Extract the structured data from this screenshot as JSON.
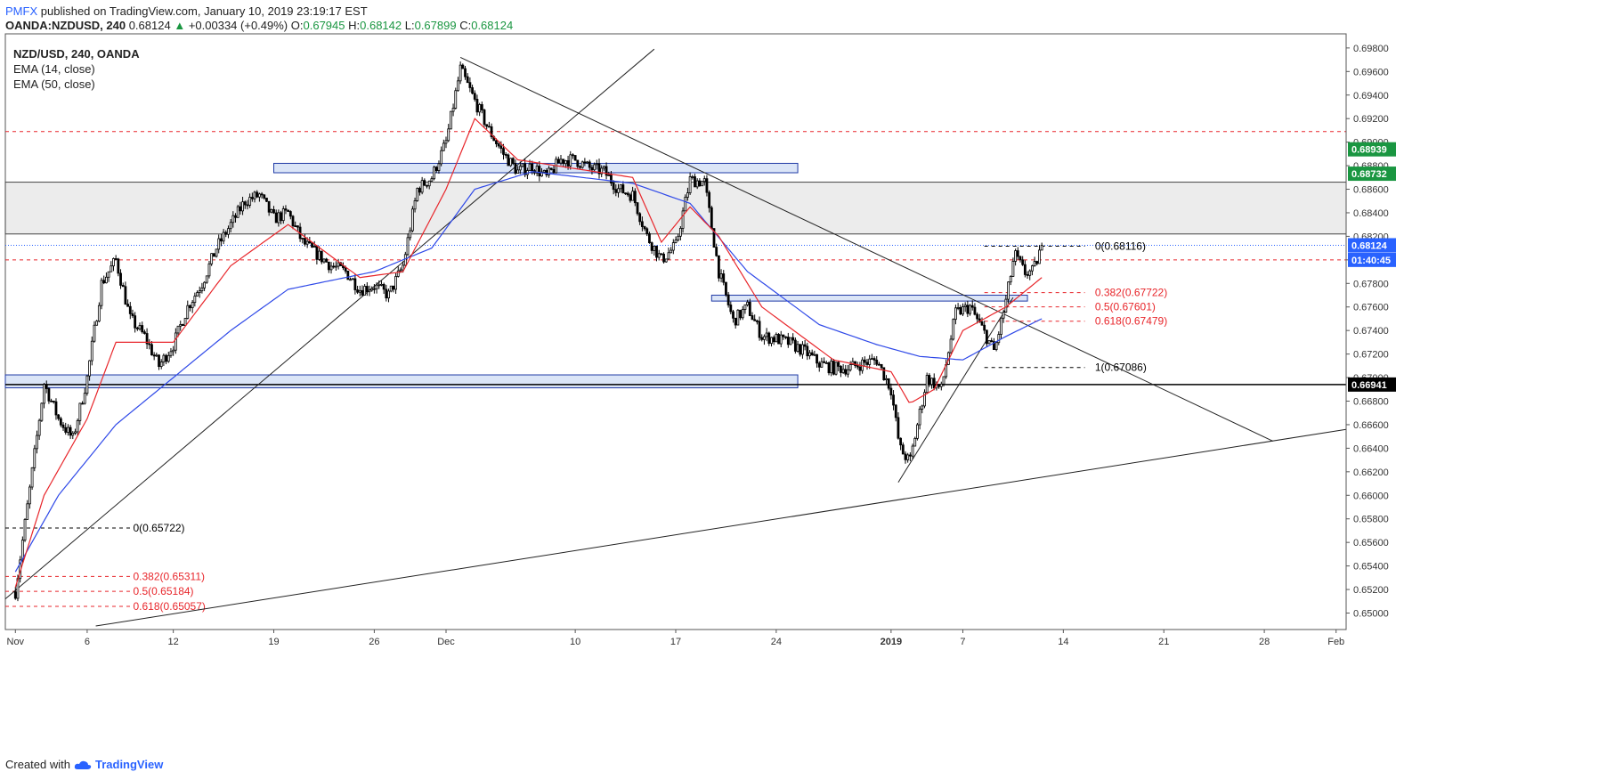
{
  "header": {
    "brand": "PMFX",
    "published": "published on TradingView.com, January 10, 2019 23:19:17 EST",
    "symbol": "OANDA:NZDUSD, 240",
    "last": "0.68124",
    "change": "+0.00334 (+0.49%)",
    "o_label": "O:",
    "o": "0.67945",
    "h_label": "H:",
    "h": "0.68142",
    "l_label": "L:",
    "l": "0.67899",
    "c_label": "C:",
    "c": "0.68124"
  },
  "legend": {
    "title": "NZD/USD, 240, OANDA",
    "ema1": "EMA (14, close)",
    "ema2": "EMA (50, close)"
  },
  "footer": {
    "created_with": "Created with",
    "brand": "TradingView"
  },
  "colors": {
    "bull": "#ffffff",
    "bear": "#000000",
    "ema14": "#e8262b",
    "ema50": "#2f49e8",
    "zone_fill": "#dbe5f7",
    "zone_stroke": "#1f3aa6",
    "fib": "#e8262b",
    "price_tag": "#2962ff",
    "green_tag": "#1a9641"
  },
  "chart_data": {
    "type": "candlestick",
    "title": "NZD/USD, 240, OANDA",
    "xlabel": "",
    "ylabel": "",
    "ylim": [
      0.6486,
      0.6992
    ],
    "y_ticks": [
      "0.69800",
      "0.69600",
      "0.69400",
      "0.69200",
      "0.69000",
      "0.68800",
      "0.68600",
      "0.68400",
      "0.68200",
      "0.68000",
      "0.67800",
      "0.67600",
      "0.67400",
      "0.67200",
      "0.67000",
      "0.66800",
      "0.66600",
      "0.66400",
      "0.66200",
      "0.66000",
      "0.65800",
      "0.65600",
      "0.65400",
      "0.65200",
      "0.65000"
    ],
    "x_ticks": [
      {
        "label": "Nov",
        "day": 1
      },
      {
        "label": "6",
        "day": 6
      },
      {
        "label": "12",
        "day": 12
      },
      {
        "label": "19",
        "day": 19
      },
      {
        "label": "26",
        "day": 26
      },
      {
        "label": "Dec",
        "day": 31
      },
      {
        "label": "10",
        "day": 40
      },
      {
        "label": "17",
        "day": 47
      },
      {
        "label": "24",
        "day": 54
      },
      {
        "label": "2019",
        "day": 62
      },
      {
        "label": "7",
        "day": 67
      },
      {
        "label": "14",
        "day": 74
      },
      {
        "label": "21",
        "day": 81
      },
      {
        "label": "28",
        "day": 88
      },
      {
        "label": "Feb",
        "day": 93
      }
    ],
    "x_range_days": [
      0.3,
      93.7
    ],
    "bars_per_day": 6,
    "last_close": 0.68124,
    "anchors": [
      [
        1,
        0.6518
      ],
      [
        2,
        0.6605
      ],
      [
        3,
        0.6695
      ],
      [
        4,
        0.6665
      ],
      [
        5,
        0.6648
      ],
      [
        6,
        0.67
      ],
      [
        7,
        0.678
      ],
      [
        8,
        0.68
      ],
      [
        9,
        0.675
      ],
      [
        10,
        0.6735
      ],
      [
        11,
        0.671
      ],
      [
        12,
        0.6728
      ],
      [
        13,
        0.676
      ],
      [
        14,
        0.678
      ],
      [
        15,
        0.681
      ],
      [
        16,
        0.683
      ],
      [
        17,
        0.685
      ],
      [
        18,
        0.6855
      ],
      [
        19,
        0.6835
      ],
      [
        20,
        0.684
      ],
      [
        21,
        0.6815
      ],
      [
        22,
        0.6805
      ],
      [
        23,
        0.6795
      ],
      [
        24,
        0.679
      ],
      [
        25,
        0.6775
      ],
      [
        26,
        0.6778
      ],
      [
        27,
        0.677
      ],
      [
        28,
        0.6795
      ],
      [
        29,
        0.686
      ],
      [
        30,
        0.687
      ],
      [
        31,
        0.69
      ],
      [
        32,
        0.6962
      ],
      [
        33,
        0.6935
      ],
      [
        34,
        0.691
      ],
      [
        35,
        0.689
      ],
      [
        36,
        0.6875
      ],
      [
        37,
        0.688
      ],
      [
        38,
        0.687
      ],
      [
        39,
        0.6885
      ],
      [
        40,
        0.6885
      ],
      [
        41,
        0.6878
      ],
      [
        42,
        0.6875
      ],
      [
        43,
        0.686
      ],
      [
        44,
        0.6855
      ],
      [
        45,
        0.682
      ],
      [
        46,
        0.68
      ],
      [
        47,
        0.6812
      ],
      [
        48,
        0.6868
      ],
      [
        49,
        0.6866
      ],
      [
        50,
        0.679
      ],
      [
        51,
        0.6748
      ],
      [
        52,
        0.676
      ],
      [
        53,
        0.6735
      ],
      [
        54,
        0.6733
      ],
      [
        55,
        0.6729
      ],
      [
        56,
        0.6722
      ],
      [
        57,
        0.6712
      ],
      [
        58,
        0.6708
      ],
      [
        59,
        0.6708
      ],
      [
        60,
        0.6712
      ],
      [
        61,
        0.6715
      ],
      [
        62,
        0.669
      ],
      [
        62.6,
        0.664
      ],
      [
        63.3,
        0.6628
      ],
      [
        64.5,
        0.67
      ],
      [
        65.5,
        0.669
      ],
      [
        66.5,
        0.6755
      ],
      [
        67.5,
        0.676
      ],
      [
        68.5,
        0.6738
      ],
      [
        69.2,
        0.6722
      ],
      [
        70,
        0.6765
      ],
      [
        70.6,
        0.6805
      ],
      [
        71.3,
        0.6789
      ],
      [
        71.9,
        0.679
      ],
      [
        72.5,
        0.68124
      ]
    ],
    "ema14_ref": [
      [
        1,
        0.6522
      ],
      [
        3,
        0.66
      ],
      [
        6,
        0.6665
      ],
      [
        8,
        0.673
      ],
      [
        12,
        0.673
      ],
      [
        16,
        0.6795
      ],
      [
        20,
        0.683
      ],
      [
        25,
        0.6785
      ],
      [
        28,
        0.679
      ],
      [
        31,
        0.686
      ],
      [
        33,
        0.692
      ],
      [
        36,
        0.6885
      ],
      [
        44,
        0.687
      ],
      [
        46,
        0.6815
      ],
      [
        48,
        0.6845
      ],
      [
        50,
        0.682
      ],
      [
        53,
        0.676
      ],
      [
        58,
        0.6715
      ],
      [
        62,
        0.6705
      ],
      [
        63.3,
        0.6678
      ],
      [
        65,
        0.669
      ],
      [
        67,
        0.674
      ],
      [
        70,
        0.676
      ],
      [
        72.5,
        0.6785
      ]
    ],
    "ema50_ref": [
      [
        1,
        0.6535
      ],
      [
        4,
        0.66
      ],
      [
        8,
        0.666
      ],
      [
        12,
        0.67
      ],
      [
        16,
        0.674
      ],
      [
        20,
        0.6775
      ],
      [
        26,
        0.679
      ],
      [
        30,
        0.681
      ],
      [
        33,
        0.686
      ],
      [
        37,
        0.6875
      ],
      [
        44,
        0.6865
      ],
      [
        48,
        0.6848
      ],
      [
        52,
        0.679
      ],
      [
        57,
        0.6745
      ],
      [
        61,
        0.6728
      ],
      [
        64,
        0.6718
      ],
      [
        67,
        0.6715
      ],
      [
        70,
        0.6735
      ],
      [
        72.5,
        0.675
      ]
    ],
    "horizontal_levels": [
      {
        "label": "dashed-resistance-high",
        "value": 0.6909,
        "style": "dashed-red"
      },
      {
        "label": "dashed-resistance-mid",
        "value": 0.68,
        "style": "dashed-red"
      },
      {
        "label": "current-price",
        "value": 0.68124,
        "style": "dotted-blue"
      },
      {
        "label": "black-support",
        "value": 0.66941,
        "style": "solid-black"
      }
    ],
    "zones": [
      {
        "name": "grey-band",
        "from_day": 0.3,
        "to_day": 93.7,
        "low": 0.6822,
        "high": 0.6866,
        "fill": "#ececec"
      },
      {
        "name": "resistance-zone-upper",
        "from_day": 19,
        "to_day": 55.5,
        "low": 0.6874,
        "high": 0.6882
      },
      {
        "name": "zone-mid",
        "from_day": 49.5,
        "to_day": 71.5,
        "low": 0.6765,
        "high": 0.677
      },
      {
        "name": "support-zone-lower",
        "from_day": 0.3,
        "to_day": 55.5,
        "low": 0.66913,
        "high": 0.67023
      }
    ],
    "fib_left": [
      {
        "label": "0(0.65722)",
        "value": 0.65722,
        "color": "#000000"
      },
      {
        "label": "0.382(0.65311)",
        "value": 0.65311,
        "color": "#e8262b"
      },
      {
        "label": "0.5(0.65184)",
        "value": 0.65184,
        "color": "#e8262b"
      },
      {
        "label": "0.618(0.65057)",
        "value": 0.65057,
        "color": "#e8262b"
      }
    ],
    "fib_right": [
      {
        "label": "0(0.68116)",
        "value": 0.68116,
        "color": "#000000"
      },
      {
        "label": "0.382(0.67722)",
        "value": 0.67722,
        "color": "#e8262b"
      },
      {
        "label": "0.5(0.67601)",
        "value": 0.67601,
        "color": "#e8262b"
      },
      {
        "label": "0.618(0.67479)",
        "value": 0.67479,
        "color": "#e8262b"
      },
      {
        "label": "1(0.67086)",
        "value": 0.67086,
        "color": "#000000"
      }
    ],
    "trendlines": [
      {
        "name": "uptrend-nov-dec",
        "d1": 0.3,
        "p1": 0.6512,
        "d2": 45.5,
        "p2": 0.6979
      },
      {
        "name": "downtrend-from-dec-high",
        "d1": 32,
        "p1": 0.6972,
        "d2": 88.6,
        "p2": 0.6646
      },
      {
        "name": "long-term-support",
        "d1": 6.6,
        "p1": 0.6489,
        "d2": 93.7,
        "p2": 0.6656
      },
      {
        "name": "jan-uptrend",
        "d1": 62.5,
        "p1": 0.6611,
        "d2": 70.5,
        "p2": 0.6768
      }
    ],
    "axis_tags": [
      {
        "text": "0.68939",
        "value": 0.68939,
        "color": "#1a9641"
      },
      {
        "text": "0.68732",
        "value": 0.68732,
        "color": "#1a9641"
      },
      {
        "text": "0.68124",
        "value": 0.68124,
        "color": "#2962ff"
      },
      {
        "text": "01:40:45",
        "value": 0.68,
        "color": "#2962ff"
      },
      {
        "text": "0.66941",
        "value": 0.66941,
        "color": "#000000"
      }
    ]
  }
}
